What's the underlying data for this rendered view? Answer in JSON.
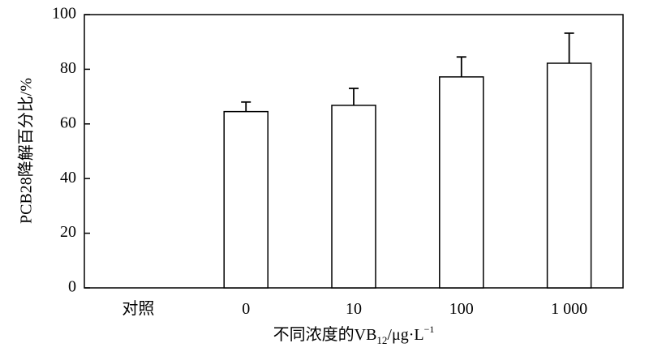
{
  "chart_data": {
    "type": "bar",
    "categories": [
      "对照",
      "0",
      "10",
      "100",
      "1 000"
    ],
    "values": [
      0,
      64.5,
      66.8,
      77.2,
      82.2
    ],
    "errors": [
      0,
      3.5,
      6.2,
      7.3,
      11.0
    ],
    "xlabel": {
      "main": "不同浓度的VB",
      "sub": "12",
      "unit": "/μg·L",
      "sup": "−1"
    },
    "ylabel": "PCB28降解百分比/%",
    "ylim": [
      0,
      100
    ],
    "yticks": [
      "0",
      "20",
      "40",
      "60",
      "80",
      "100"
    ],
    "grid": false,
    "bar_fill": "#ffffff",
    "bar_stroke": "#000000"
  }
}
